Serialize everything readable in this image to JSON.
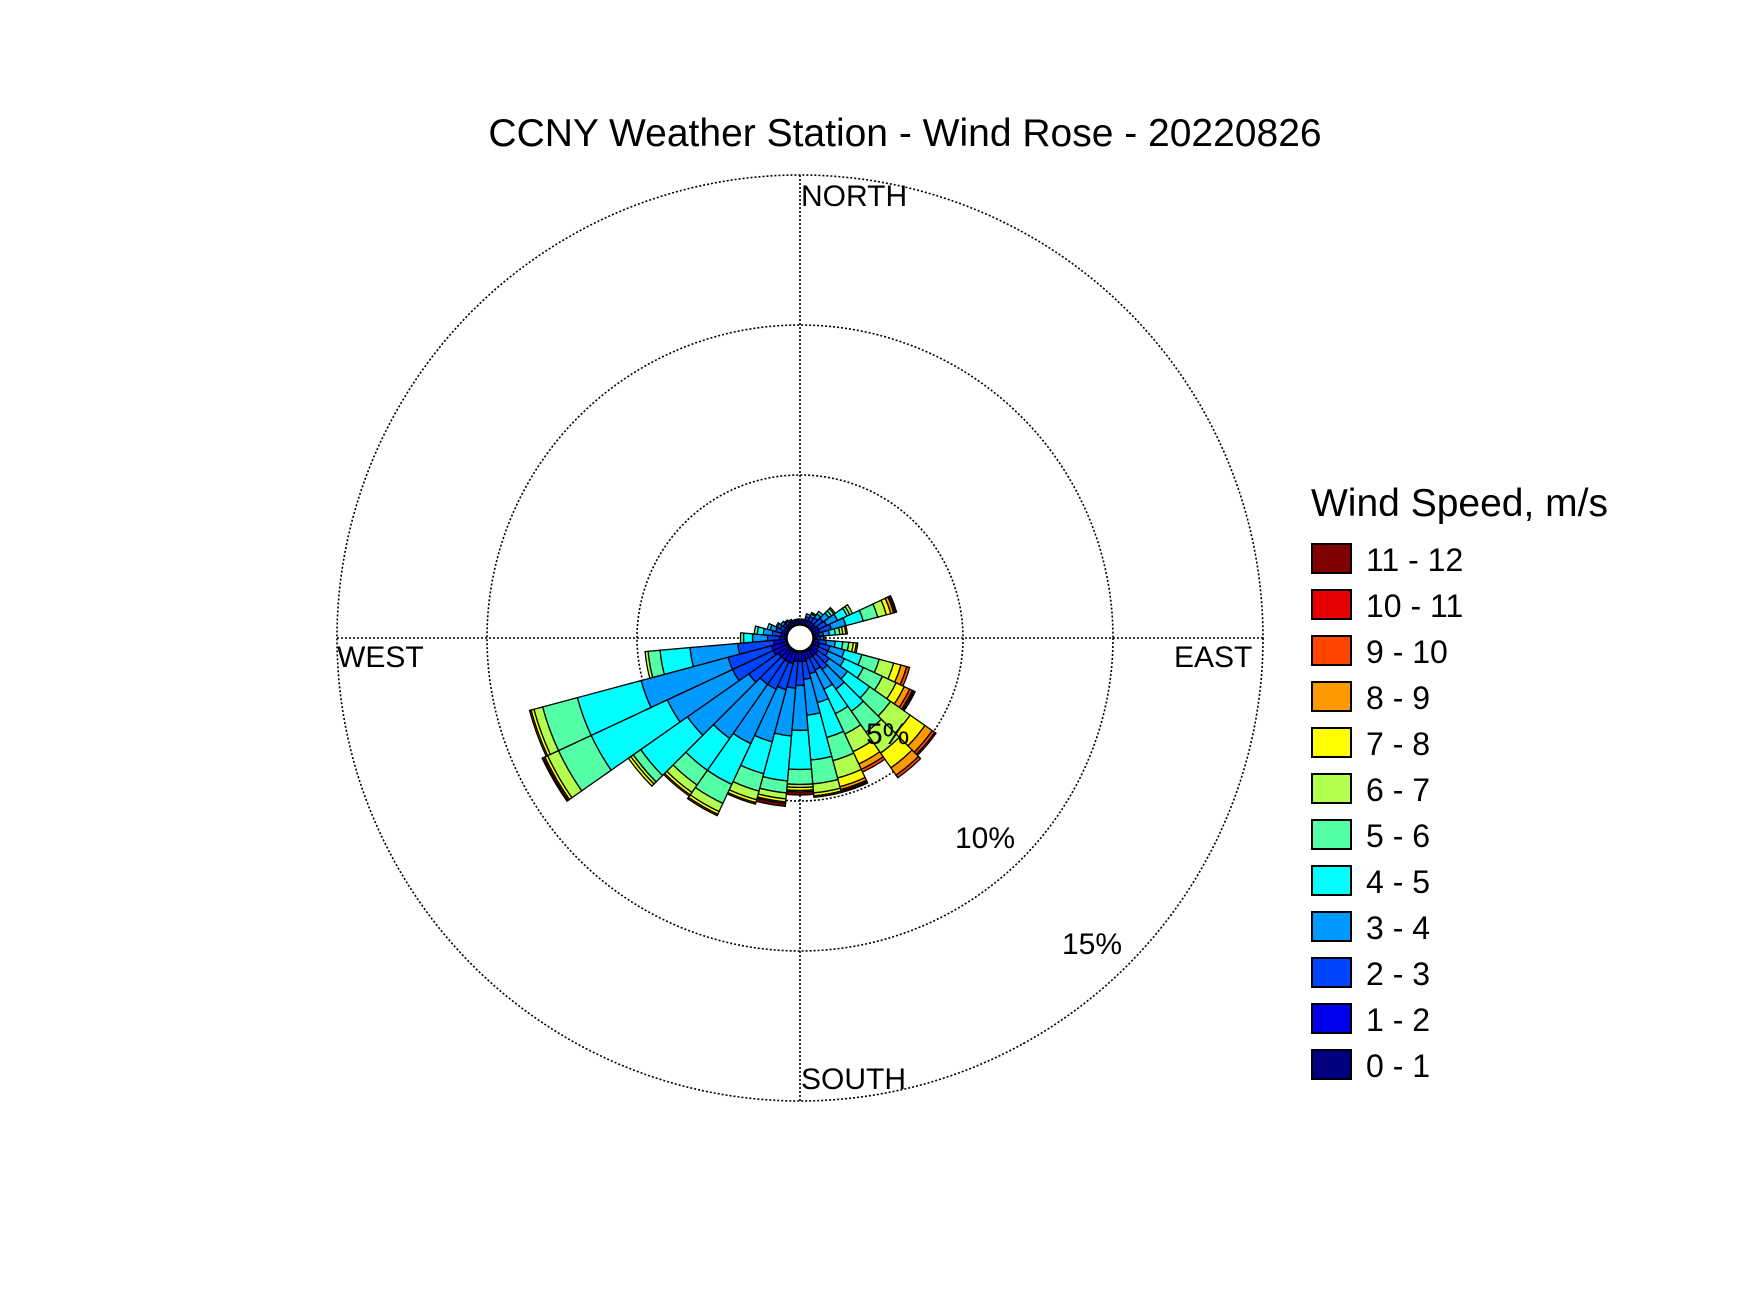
{
  "title": "CCNY Weather Station - Wind Rose - 20220826",
  "directions": {
    "north": "NORTH",
    "south": "SOUTH",
    "east": "EAST",
    "west": "WEST"
  },
  "rings": {
    "r5": "5%",
    "r10": "10%",
    "r15": "15%"
  },
  "legend": {
    "title": "Wind Speed, m/s",
    "items": [
      {
        "label": "11 - 12",
        "color": "#800000"
      },
      {
        "label": "10 - 11",
        "color": "#e60000"
      },
      {
        "label": "9 - 10",
        "color": "#ff4500"
      },
      {
        "label": "8 - 9",
        "color": "#ff9900"
      },
      {
        "label": "7 - 8",
        "color": "#ffff00"
      },
      {
        "label": "6 - 7",
        "color": "#b3ff4d"
      },
      {
        "label": "5 - 6",
        "color": "#55ffa6"
      },
      {
        "label": "4 - 5",
        "color": "#00ffff"
      },
      {
        "label": "3 - 4",
        "color": "#0099ff"
      },
      {
        "label": "2 - 3",
        "color": "#0044ff"
      },
      {
        "label": "1 - 2",
        "color": "#0000ee"
      },
      {
        "label": "0 - 1",
        "color": "#000080"
      }
    ]
  },
  "chart_data": {
    "type": "wind rose",
    "title": "CCNY Weather Station - Wind Rose - 20220826",
    "radial_unit": "%",
    "radial_ticks": [
      5,
      10,
      15
    ],
    "rmax": 15,
    "sector_width_deg": 10,
    "speed_bins": [
      "0 - 1",
      "1 - 2",
      "2 - 3",
      "3 - 4",
      "4 - 5",
      "5 - 6",
      "6 - 7",
      "7 - 8",
      "8 - 9",
      "9 - 10",
      "10 - 11",
      "11 - 12"
    ],
    "sector_bin_percentages": [
      {
        "dir": 0,
        "values": [
          0.05,
          0.1,
          0.05,
          0,
          0,
          0,
          0,
          0,
          0,
          0,
          0,
          0
        ]
      },
      {
        "dir": 10,
        "values": [
          0.05,
          0.1,
          0.05,
          0,
          0,
          0,
          0,
          0,
          0,
          0,
          0,
          0
        ]
      },
      {
        "dir": 350,
        "values": [
          0.05,
          0.1,
          0.05,
          0,
          0,
          0,
          0,
          0,
          0,
          0,
          0,
          0
        ]
      },
      {
        "dir": 20,
        "values": [
          0.05,
          0.15,
          0.1,
          0.1,
          0,
          0,
          0,
          0,
          0,
          0,
          0,
          0
        ]
      },
      {
        "dir": 30,
        "values": [
          0.05,
          0.15,
          0.15,
          0.1,
          0.05,
          0,
          0,
          0,
          0,
          0,
          0,
          0
        ]
      },
      {
        "dir": 40,
        "values": [
          0.05,
          0.15,
          0.2,
          0.15,
          0.1,
          0,
          0,
          0,
          0,
          0,
          0,
          0
        ]
      },
      {
        "dir": 50,
        "values": [
          0.05,
          0.15,
          0.3,
          0.25,
          0.1,
          0.1,
          0.05,
          0,
          0,
          0,
          0,
          0
        ]
      },
      {
        "dir": 60,
        "values": [
          0.05,
          0.2,
          0.3,
          0.4,
          0.35,
          0.1,
          0.1,
          0,
          0,
          0,
          0,
          0
        ]
      },
      {
        "dir": 70,
        "values": [
          0.05,
          0.2,
          0.4,
          0.5,
          0.6,
          0.5,
          0.3,
          0.15,
          0.1,
          0.05,
          0,
          0.05
        ]
      },
      {
        "dir": 80,
        "values": [
          0.05,
          0.15,
          0.15,
          0.2,
          0.2,
          0.15,
          0.1,
          0.1,
          0.05,
          0,
          0,
          0
        ]
      },
      {
        "dir": 90,
        "values": [
          0.05,
          0.1,
          0.1,
          0.1,
          0.05,
          0,
          0,
          0,
          0,
          0,
          0,
          0
        ]
      },
      {
        "dir": 100,
        "values": [
          0.05,
          0.15,
          0.25,
          0.3,
          0.25,
          0.2,
          0.15,
          0.1,
          0.05,
          0,
          0,
          0
        ]
      },
      {
        "dir": 110,
        "values": [
          0.05,
          0.2,
          0.35,
          0.5,
          0.6,
          0.6,
          0.5,
          0.25,
          0.2,
          0.1,
          0,
          0
        ]
      },
      {
        "dir": 120,
        "values": [
          0.05,
          0.2,
          0.35,
          0.6,
          0.7,
          0.7,
          0.5,
          0.3,
          0.2,
          0.1,
          0.05,
          0.05
        ]
      },
      {
        "dir": 130,
        "values": [
          0.05,
          0.25,
          0.45,
          0.75,
          0.9,
          0.85,
          0.8,
          0.6,
          0.3,
          0.1,
          0.05,
          0
        ]
      },
      {
        "dir": 140,
        "values": [
          0.05,
          0.25,
          0.55,
          0.8,
          0.9,
          0.85,
          0.85,
          0.6,
          0.3,
          0.1,
          0,
          0
        ]
      },
      {
        "dir": 150,
        "values": [
          0.05,
          0.25,
          0.45,
          0.7,
          0.9,
          0.75,
          0.65,
          0.45,
          0.2,
          0.1,
          0,
          0
        ]
      },
      {
        "dir": 160,
        "values": [
          0.05,
          0.25,
          0.5,
          1.0,
          1.2,
          0.8,
          0.6,
          0.3,
          0.1,
          0.05,
          0.05,
          0
        ]
      },
      {
        "dir": 170,
        "values": [
          0.05,
          0.3,
          0.6,
          1.2,
          1.5,
          0.8,
          0.3,
          0.1,
          0.05,
          0,
          0,
          0
        ]
      },
      {
        "dir": 180,
        "values": [
          0.05,
          0.3,
          0.8,
          1.5,
          1.3,
          0.5,
          0.1,
          0.1,
          0.05,
          0,
          0,
          0.1
        ]
      },
      {
        "dir": 190,
        "values": [
          0.05,
          0.3,
          0.9,
          1.6,
          1.5,
          0.4,
          0.2,
          0.1,
          0.05,
          0,
          0,
          0.1
        ]
      },
      {
        "dir": 200,
        "values": [
          0.05,
          0.4,
          0.9,
          1.8,
          1.1,
          0.6,
          0.3,
          0.1,
          0.05,
          0,
          0,
          0
        ]
      },
      {
        "dir": 210,
        "values": [
          0.05,
          0.4,
          1.0,
          2.0,
          1.5,
          0.7,
          0.3,
          0.1,
          0.05,
          0,
          0,
          0
        ]
      },
      {
        "dir": 220,
        "values": [
          0.05,
          0.4,
          1.0,
          2.2,
          1.3,
          0.6,
          0.3,
          0.1,
          0.05,
          0,
          0,
          0
        ]
      },
      {
        "dir": 230,
        "values": [
          0.05,
          0.4,
          1.2,
          2.5,
          1.9,
          0.3,
          0.1,
          0.1,
          0,
          0,
          0,
          0
        ]
      },
      {
        "dir": 240,
        "values": [
          0.05,
          0.5,
          1.5,
          2.4,
          2.8,
          1.2,
          0.4,
          0.1,
          0.05,
          0,
          0,
          0.05
        ]
      },
      {
        "dir": 250,
        "values": [
          0.05,
          0.5,
          1.5,
          3.0,
          2.2,
          1.2,
          0.3,
          0.1,
          0.05,
          0,
          0,
          0
        ]
      },
      {
        "dir": 260,
        "values": [
          0.05,
          0.4,
          1.2,
          1.6,
          1.0,
          0.4,
          0.1,
          0,
          0,
          0,
          0,
          0
        ]
      },
      {
        "dir": 270,
        "values": [
          0.05,
          0.2,
          0.4,
          0.5,
          0.3,
          0.1,
          0,
          0,
          0,
          0,
          0,
          0
        ]
      },
      {
        "dir": 280,
        "values": [
          0.05,
          0.15,
          0.3,
          0.3,
          0.2,
          0.1,
          0,
          0,
          0,
          0,
          0,
          0
        ]
      },
      {
        "dir": 290,
        "values": [
          0.05,
          0.15,
          0.2,
          0.2,
          0.1,
          0,
          0,
          0,
          0,
          0,
          0,
          0
        ]
      },
      {
        "dir": 300,
        "values": [
          0.05,
          0.1,
          0.15,
          0.1,
          0.05,
          0,
          0,
          0,
          0,
          0,
          0,
          0
        ]
      },
      {
        "dir": 310,
        "values": [
          0.05,
          0.1,
          0.1,
          0.1,
          0,
          0,
          0,
          0,
          0,
          0,
          0,
          0
        ]
      },
      {
        "dir": 320,
        "values": [
          0.05,
          0.1,
          0.1,
          0.05,
          0,
          0,
          0,
          0,
          0,
          0,
          0,
          0
        ]
      },
      {
        "dir": 330,
        "values": [
          0.05,
          0.1,
          0.05,
          0.05,
          0,
          0,
          0,
          0,
          0,
          0,
          0,
          0
        ]
      },
      {
        "dir": 340,
        "values": [
          0.05,
          0.1,
          0.05,
          0,
          0,
          0,
          0,
          0,
          0,
          0,
          0,
          0
        ]
      }
    ]
  }
}
